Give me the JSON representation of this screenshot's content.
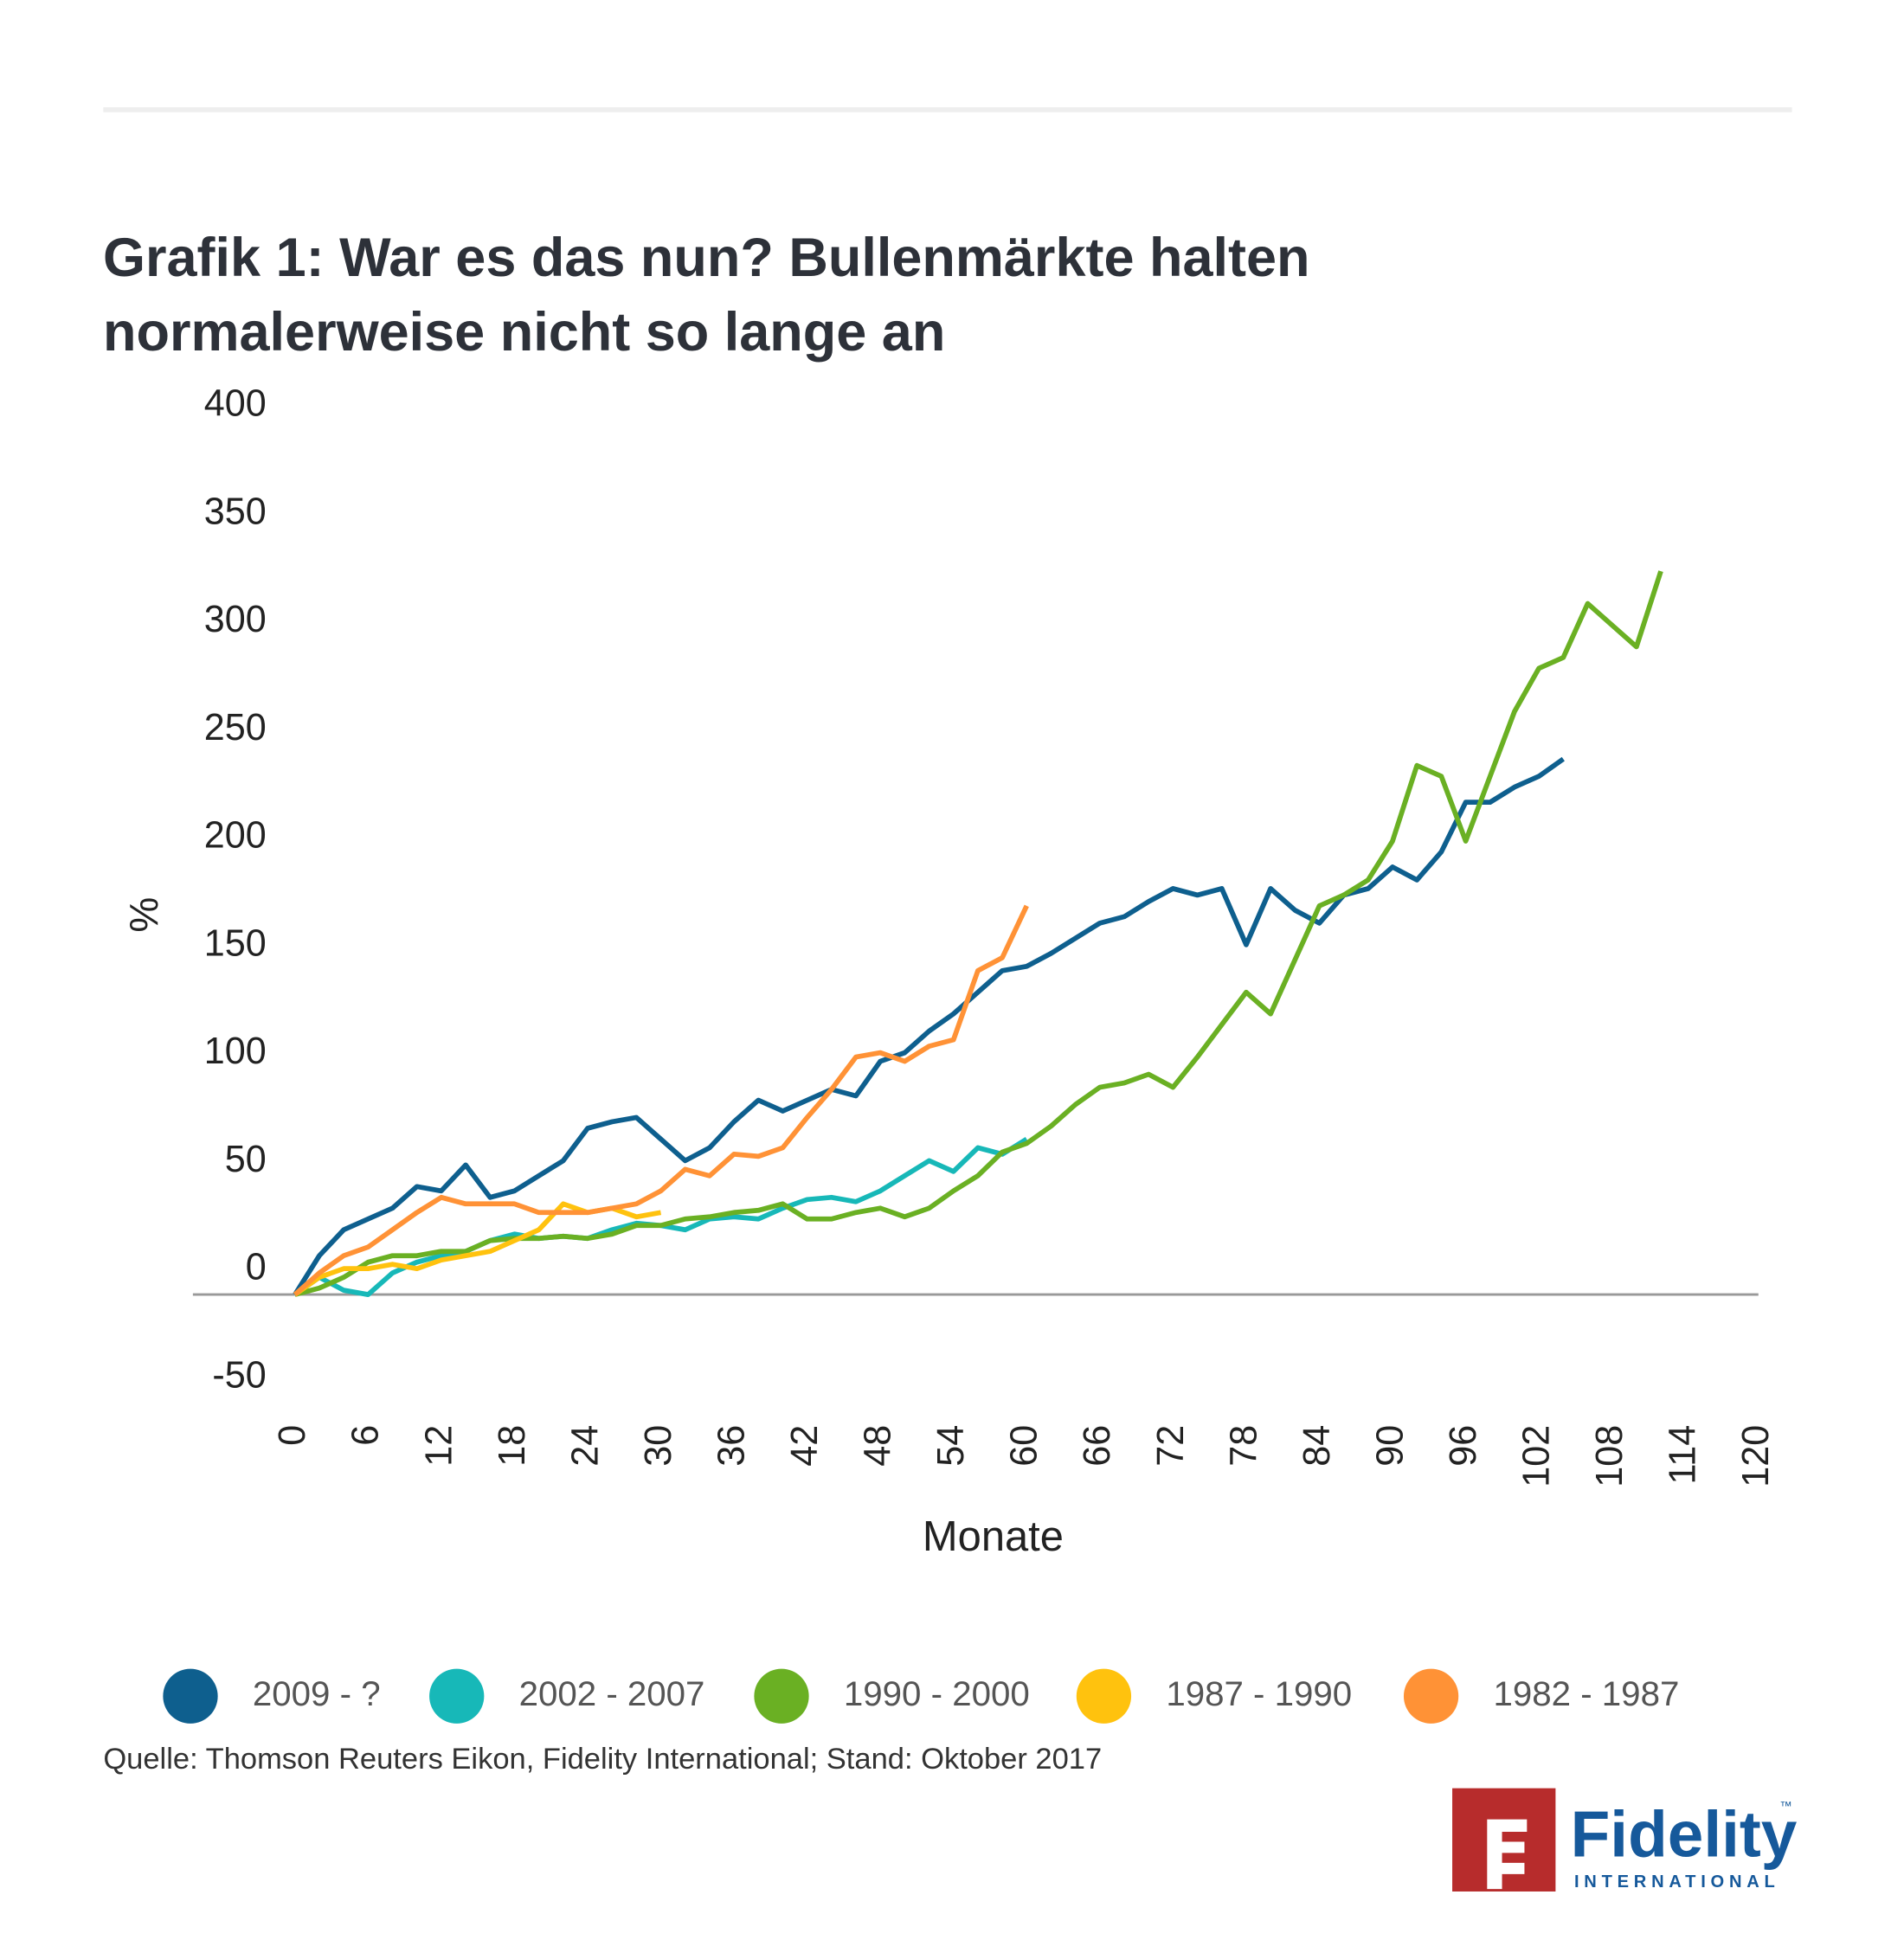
{
  "chart_data": {
    "type": "line",
    "title": "Grafik 1: War es das nun? Bullenmärkte halten normalerweise nicht so lange an",
    "x_label": "Monate",
    "y_label": "%",
    "source": "Quelle: Thomson Reuters Eikon, Fidelity International; Stand: Oktober 2017",
    "x": [
      0,
      2,
      4,
      6,
      8,
      10,
      12,
      14,
      16,
      18,
      20,
      22,
      24,
      26,
      28,
      30,
      32,
      34,
      36,
      38,
      40,
      42,
      44,
      46,
      48,
      50,
      52,
      54,
      56,
      58,
      60,
      62,
      64,
      66,
      68,
      70,
      72,
      74,
      76,
      78,
      80,
      82,
      84,
      86,
      88,
      90,
      92,
      94,
      96,
      98,
      100,
      102,
      104,
      106,
      108,
      110,
      112
    ],
    "xlim": [
      0,
      120
    ],
    "xticks": [
      0,
      6,
      12,
      18,
      24,
      30,
      36,
      42,
      48,
      54,
      60,
      66,
      72,
      78,
      84,
      90,
      96,
      102,
      108,
      114,
      120
    ],
    "ylim": [
      -50,
      400
    ],
    "yticks": [
      -50,
      0,
      50,
      100,
      150,
      200,
      250,
      300,
      350,
      400
    ],
    "series": [
      {
        "name": "2009 - ?",
        "color": "#0e5f8e",
        "values": [
          0,
          18,
          30,
          35,
          40,
          50,
          48,
          60,
          45,
          48,
          55,
          62,
          77,
          80,
          82,
          72,
          62,
          68,
          80,
          90,
          85,
          90,
          95,
          92,
          108,
          112,
          122,
          130,
          140,
          150,
          152,
          158,
          165,
          172,
          175,
          182,
          188,
          185,
          188,
          162,
          188,
          178,
          172,
          185,
          188,
          198,
          192,
          205,
          228,
          228,
          235,
          240,
          248,
          null,
          null,
          null,
          null
        ]
      },
      {
        "name": "2002 - 2007",
        "color": "#17b8b8",
        "values": [
          0,
          8,
          2,
          0,
          10,
          15,
          18,
          20,
          25,
          28,
          26,
          27,
          26,
          30,
          33,
          32,
          30,
          35,
          36,
          35,
          40,
          44,
          45,
          43,
          48,
          55,
          62,
          57,
          68,
          65,
          72,
          null,
          null,
          null,
          null,
          null,
          null,
          null,
          null,
          null,
          null,
          null,
          null,
          null,
          null,
          null,
          null,
          null,
          null,
          null,
          null,
          null,
          null,
          null,
          null,
          null,
          null
        ]
      },
      {
        "name": "1990 - 2000",
        "color": "#6ab023",
        "values": [
          0,
          3,
          8,
          15,
          18,
          18,
          20,
          20,
          25,
          26,
          26,
          27,
          26,
          28,
          32,
          32,
          35,
          36,
          38,
          39,
          42,
          35,
          35,
          38,
          40,
          36,
          40,
          48,
          55,
          66,
          70,
          78,
          88,
          96,
          98,
          102,
          96,
          110,
          125,
          140,
          130,
          155,
          180,
          185,
          192,
          210,
          245,
          240,
          210,
          240,
          270,
          290,
          295,
          320,
          310,
          300,
          335
        ]
      },
      {
        "name": "1987 - 1990",
        "color": "#ffc20e",
        "values": [
          0,
          8,
          12,
          12,
          14,
          12,
          16,
          18,
          20,
          25,
          30,
          42,
          38,
          40,
          36,
          38,
          null,
          null,
          null,
          null,
          null,
          null,
          null,
          null,
          null,
          null,
          null,
          null,
          null,
          null,
          null,
          null,
          null,
          null,
          null,
          null,
          null,
          null,
          null,
          null,
          null,
          null,
          null,
          null,
          null,
          null,
          null,
          null,
          null,
          null,
          null,
          null,
          null,
          null,
          null,
          null,
          null
        ]
      },
      {
        "name": "1982 - 1987",
        "color": "#ff9236",
        "values": [
          0,
          10,
          18,
          22,
          30,
          38,
          45,
          42,
          42,
          42,
          38,
          38,
          38,
          40,
          42,
          48,
          58,
          55,
          65,
          64,
          68,
          82,
          95,
          110,
          112,
          108,
          115,
          118,
          150,
          156,
          180,
          null,
          null,
          null,
          null,
          null,
          null,
          null,
          null,
          null,
          null,
          null,
          null,
          null,
          null,
          null,
          null,
          null,
          null,
          null,
          null,
          null,
          null,
          null,
          null,
          null,
          null
        ]
      }
    ],
    "zero_line": true
  },
  "logo": {
    "name": "Fidelity",
    "sub": "INTERNATIONAL",
    "tm": "™"
  }
}
